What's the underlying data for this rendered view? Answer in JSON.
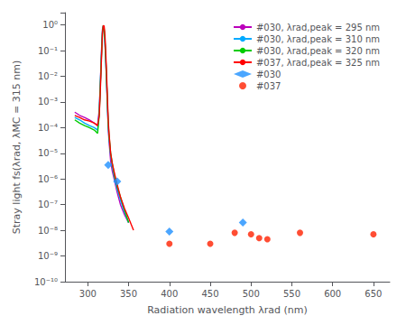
{
  "chart_data": {
    "type": "line",
    "xlabel": "Radiation wavelength λrad (nm)",
    "ylabel": "Stray light fs(λrad, λMC = 315 nm)",
    "log": "y",
    "grid": false,
    "legend": "upper right",
    "xlim": [
      272,
      670
    ],
    "ylim": [
      1e-10,
      3.0
    ],
    "xticks": [
      300,
      350,
      400,
      450,
      500,
      550,
      600,
      650
    ],
    "yticks": [
      {
        "value": 1e-10,
        "label": "10⁻¹⁰"
      },
      {
        "value": 1e-09,
        "label": "10⁻⁹"
      },
      {
        "value": 1e-08,
        "label": "10⁻⁸"
      },
      {
        "value": 1e-07,
        "label": "10⁻⁷"
      },
      {
        "value": 1e-06,
        "label": "10⁻⁶"
      },
      {
        "value": 1e-05,
        "label": "10⁻⁵"
      },
      {
        "value": 0.0001,
        "label": "10⁻⁴"
      },
      {
        "value": 0.001,
        "label": "10⁻³"
      },
      {
        "value": 0.01,
        "label": "10⁻²"
      },
      {
        "value": 0.1,
        "label": "10⁻¹"
      },
      {
        "value": 1.0,
        "label": "10⁰"
      }
    ],
    "series": [
      {
        "name": "#030, λrad,peak = 295 nm",
        "type": "line",
        "color": "#BB00BB",
        "x": [
          284,
          290,
          296,
          302,
          308,
          312,
          314,
          315,
          316,
          317,
          318,
          319,
          320,
          321,
          322,
          323,
          324,
          325,
          326,
          328,
          330,
          333,
          336,
          340,
          345,
          350
        ],
        "values": [
          0.0004,
          0.0003,
          0.00025,
          0.0002,
          0.00015,
          0.00012,
          0.0005,
          0.003,
          0.02,
          0.15,
          0.7,
          0.9,
          0.6,
          0.2,
          0.04,
          0.006,
          0.0008,
          0.0001,
          3e-05,
          5e-06,
          2e-06,
          8e-07,
          3e-07,
          1e-07,
          4e-08,
          2e-08
        ]
      },
      {
        "name": "#030, λrad,peak = 310 nm",
        "type": "line",
        "color": "#00AAFF",
        "x": [
          284,
          290,
          296,
          302,
          308,
          312,
          314,
          315,
          316,
          317,
          318,
          319,
          320,
          321,
          322,
          323,
          324,
          325,
          326,
          328,
          330,
          333,
          336,
          340,
          345,
          350
        ],
        "values": [
          0.00025,
          0.0002,
          0.00015,
          0.00012,
          0.0001,
          8e-05,
          0.0004,
          0.0025,
          0.018,
          0.12,
          0.6,
          0.9,
          0.6,
          0.2,
          0.04,
          0.006,
          0.0008,
          0.00012,
          4e-05,
          8e-06,
          3e-06,
          1e-06,
          4e-07,
          1.5e-07,
          5e-08,
          2e-08
        ]
      },
      {
        "name": "#030, λrad,peak = 320 nm",
        "type": "line",
        "color": "#00CC00",
        "x": [
          284,
          290,
          296,
          302,
          308,
          312,
          314,
          315,
          316,
          317,
          318,
          319,
          320,
          321,
          322,
          323,
          324,
          325,
          326,
          328,
          330,
          333,
          336,
          340,
          345,
          350
        ],
        "values": [
          0.0002,
          0.00015,
          0.00012,
          0.0001,
          8e-05,
          6e-05,
          0.0003,
          0.002,
          0.015,
          0.1,
          0.55,
          0.95,
          0.7,
          0.25,
          0.05,
          0.007,
          0.001,
          0.00015,
          5e-05,
          1e-05,
          4e-06,
          1.2e-06,
          5e-07,
          2e-07,
          6e-08,
          2e-08
        ]
      },
      {
        "name": "#037, λrad,peak = 325 nm",
        "type": "line",
        "color": "#FF0000",
        "x": [
          284,
          290,
          296,
          302,
          308,
          312,
          314,
          315,
          316,
          317,
          318,
          319,
          320,
          321,
          322,
          323,
          324,
          325,
          326,
          328,
          330,
          333,
          336,
          340,
          345,
          350,
          356
        ],
        "values": [
          0.0003,
          0.00025,
          0.0002,
          0.00018,
          0.00015,
          0.00012,
          0.0003,
          0.0015,
          0.01,
          0.08,
          0.5,
          0.95,
          0.9,
          0.4,
          0.08,
          0.012,
          0.0015,
          0.0002,
          6e-05,
          1e-05,
          4e-06,
          1.5e-06,
          6e-07,
          2e-07,
          7e-08,
          3e-08,
          1e-08
        ]
      },
      {
        "name": "#030",
        "type": "scatter",
        "color": "#1E90FF",
        "marker": "diamond",
        "x": [
          325,
          336,
          400,
          490
        ],
        "values": [
          3.5e-06,
          8e-07,
          9e-09,
          2e-08
        ]
      },
      {
        "name": "#037",
        "type": "scatter",
        "color": "#FF2000",
        "marker": "circle",
        "x": [
          400,
          450,
          480,
          500,
          510,
          520,
          560,
          650
        ],
        "values": [
          3e-09,
          3e-09,
          8e-09,
          7e-09,
          5e-09,
          4.5e-09,
          8e-09,
          7e-09
        ]
      }
    ]
  }
}
